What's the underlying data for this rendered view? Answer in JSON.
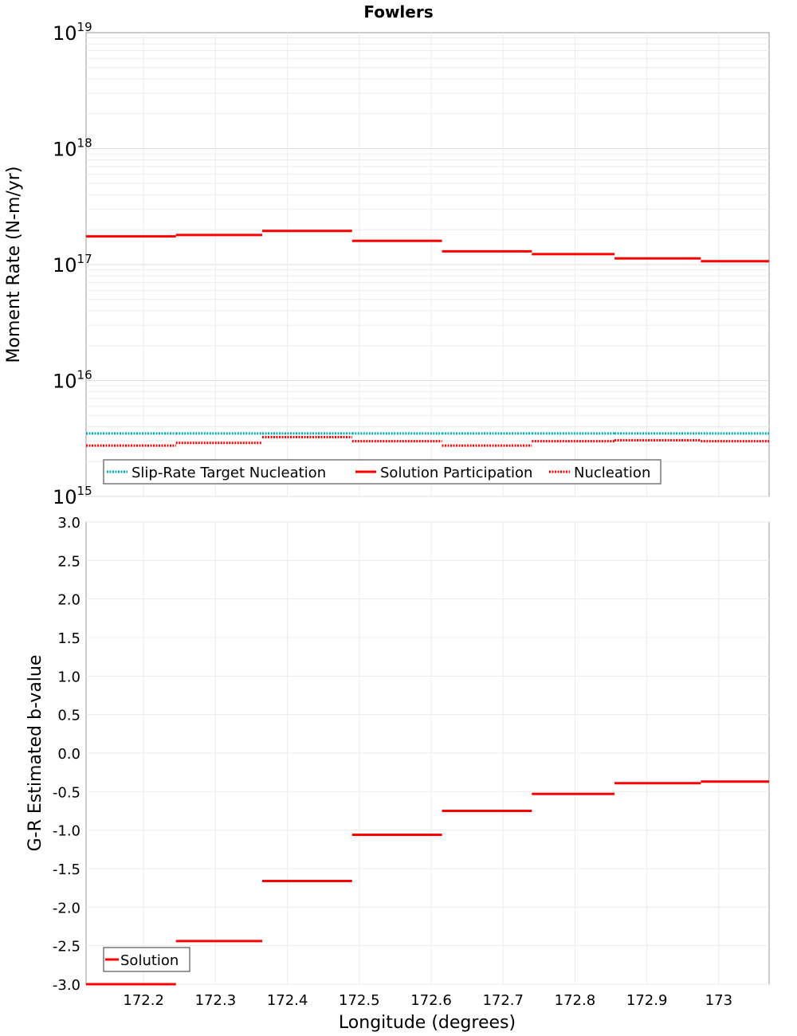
{
  "title": "Fowlers",
  "chart_data": [
    {
      "type": "line",
      "title": "Fowlers",
      "ylabel": "Moment Rate (N-m/yr)",
      "xlabel": "",
      "yscale": "log",
      "ylim": [
        1000000000000000.0,
        1e+19
      ],
      "xlim": [
        172.12,
        173.07
      ],
      "grid": true,
      "legend_position": "bottom-left",
      "y_ticks": [
        {
          "base": "10",
          "exp": "15"
        },
        {
          "base": "10",
          "exp": "16"
        },
        {
          "base": "10",
          "exp": "17"
        },
        {
          "base": "10",
          "exp": "18"
        },
        {
          "base": "10",
          "exp": "19"
        }
      ],
      "bin_edges": [
        172.12,
        172.245,
        172.365,
        172.49,
        172.615,
        172.74,
        172.855,
        172.975,
        173.07
      ],
      "series": [
        {
          "name": "Slip-Rate Target Nucleation",
          "color": "#00b0b0",
          "style": "dotted",
          "values": [
            3500000000000000.0,
            3500000000000000.0,
            3500000000000000.0,
            3500000000000000.0,
            3500000000000000.0,
            3500000000000000.0,
            3500000000000000.0,
            3500000000000000.0
          ]
        },
        {
          "name": "Solution Participation",
          "color": "#ff0000",
          "style": "solid",
          "values": [
            1.75e+17,
            1.8e+17,
            1.95e+17,
            1.6e+17,
            1.3e+17,
            1.23e+17,
            1.13e+17,
            1.07e+17
          ]
        },
        {
          "name": "Nucleation",
          "color": "#ff0000",
          "style": "dotted",
          "values": [
            2750000000000000.0,
            2900000000000000.0,
            3250000000000000.0,
            3000000000000000.0,
            2750000000000000.0,
            3000000000000000.0,
            3050000000000000.0,
            3000000000000000.0
          ]
        }
      ]
    },
    {
      "type": "line",
      "title": "",
      "ylabel": "G-R Estimated b-value",
      "xlabel": "Longitude (degrees)",
      "ylim": [
        -3.0,
        3.0
      ],
      "xlim": [
        172.12,
        173.07
      ],
      "grid": true,
      "legend_position": "bottom-left",
      "y_ticks": [
        "-3.0",
        "-2.5",
        "-2.0",
        "-1.5",
        "-1.0",
        "-0.5",
        "0.0",
        "0.5",
        "1.0",
        "1.5",
        "2.0",
        "2.5",
        "3.0"
      ],
      "x_ticks": [
        "172.2",
        "172.3",
        "172.4",
        "172.5",
        "172.6",
        "172.7",
        "172.8",
        "172.9",
        "173"
      ],
      "bin_edges": [
        172.12,
        172.245,
        172.365,
        172.49,
        172.615,
        172.74,
        172.855,
        172.975,
        173.07
      ],
      "series": [
        {
          "name": "Solution",
          "color": "#ff0000",
          "style": "solid",
          "values": [
            -3.0,
            -2.44,
            -1.66,
            -1.06,
            -0.75,
            -0.53,
            -0.39,
            -0.37
          ]
        }
      ]
    }
  ]
}
